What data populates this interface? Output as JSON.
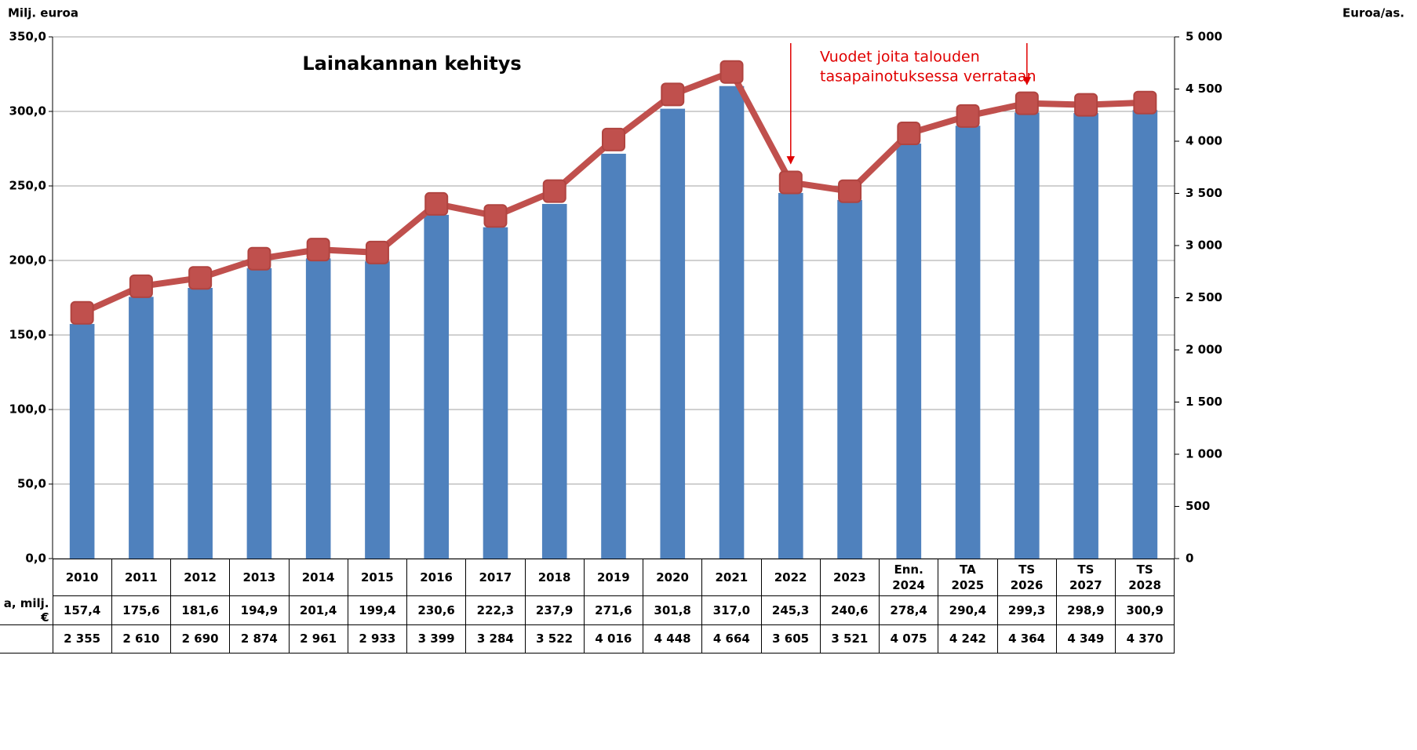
{
  "chart_data": {
    "type": "bar_line",
    "title": "Lainakannan kehitys",
    "y_label": "Milj. euroa",
    "y2_label": "Euroa/as.",
    "annotation": [
      "Vuodet joita talouden",
      "tasapainotuksessa verrataan"
    ],
    "annotation_targets": [
      12,
      16
    ],
    "categories": [
      "2010",
      "2011",
      "2012",
      "2013",
      "2014",
      "2015",
      "2016",
      "2017",
      "2018",
      "2019",
      "2020",
      "2021",
      "2022",
      "2023",
      "Enn.\n2024",
      "TA\n2025",
      "TS\n2026",
      "TS\n2027",
      "TS\n2028"
    ],
    "series": [
      {
        "name": "a, milj. €",
        "type": "bar",
        "color": "#4f81bd",
        "values": [
          157.4,
          175.6,
          181.6,
          194.9,
          201.4,
          199.4,
          230.6,
          222.3,
          237.9,
          271.6,
          301.8,
          317.0,
          245.3,
          240.6,
          278.4,
          290.4,
          299.3,
          298.9,
          300.9
        ],
        "value_labels": [
          "157,4",
          "175,6",
          "181,6",
          "194,9",
          "201,4",
          "199,4",
          "230,6",
          "222,3",
          "237,9",
          "271,6",
          "301,8",
          "317,0",
          "245,3",
          "240,6",
          "278,4",
          "290,4",
          "299,3",
          "298,9",
          "300,9"
        ]
      },
      {
        "type": "line",
        "axis": "y2",
        "color": "#c0504d",
        "values": [
          2355,
          2610,
          2690,
          2874,
          2961,
          2933,
          3399,
          3284,
          3522,
          4016,
          4448,
          4664,
          3605,
          3521,
          4075,
          4242,
          4364,
          4349,
          4370
        ],
        "value_labels": [
          "2 355",
          "2 610",
          "2 690",
          "2 874",
          "2 961",
          "2 933",
          "3 399",
          "3 284",
          "3 522",
          "4 016",
          "4 448",
          "4 664",
          "3 605",
          "3 521",
          "4 075",
          "4 242",
          "4 364",
          "4 349",
          "4 370"
        ]
      }
    ],
    "ylim": [
      0,
      350
    ],
    "yticks": [
      {
        "value": 0,
        "label": "0,0"
      },
      {
        "value": 50,
        "label": "50,0"
      },
      {
        "value": 100,
        "label": "100,0"
      },
      {
        "value": 150,
        "label": "150,0"
      },
      {
        "value": 200,
        "label": "200,0"
      },
      {
        "value": 250,
        "label": "250,0"
      },
      {
        "value": 300,
        "label": "300,0"
      },
      {
        "value": 350,
        "label": "350,0"
      }
    ],
    "y2lim": [
      0,
      5000
    ],
    "y2ticks": [
      0,
      500,
      {
        "value": 1000,
        "label": "1 000"
      },
      {
        "value": 1500,
        "label": "1 500"
      },
      {
        "value": 2000,
        "label": "2 000"
      },
      {
        "value": 2500,
        "label": "2 500"
      },
      {
        "value": 3000,
        "label": "3 000"
      },
      {
        "value": 3500,
        "label": "3 500"
      },
      {
        "value": 4000,
        "label": "4 000"
      },
      {
        "value": 4500,
        "label": "4 500"
      },
      {
        "value": 5000,
        "label": "5 000"
      }
    ],
    "grid": true
  }
}
